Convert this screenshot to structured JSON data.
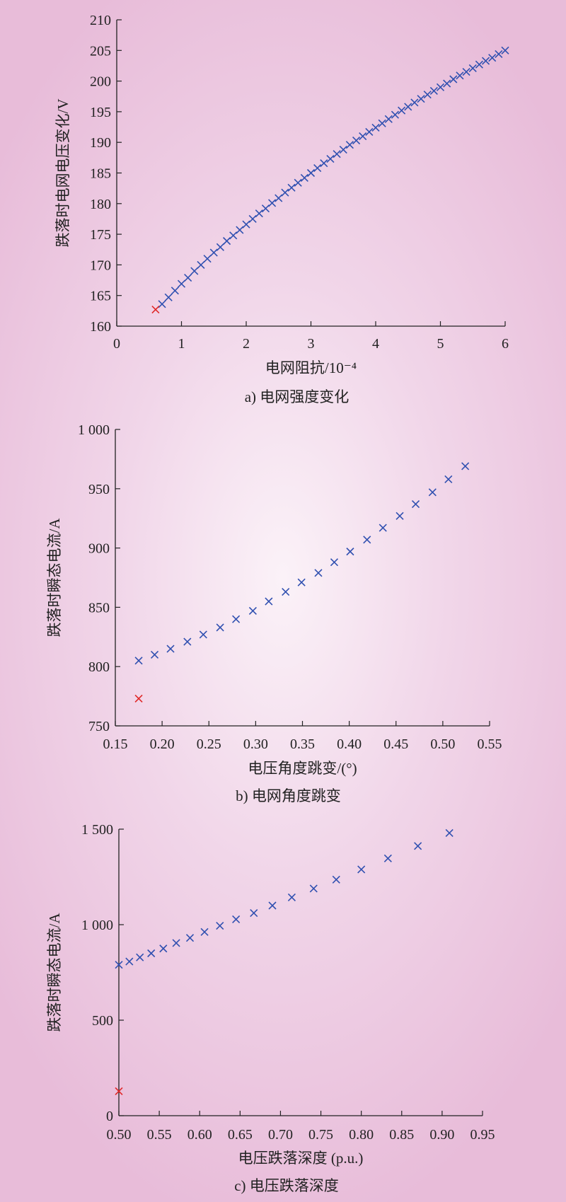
{
  "colors": {
    "series": "#3050b0",
    "highlight": "#e02828",
    "axis": "#222222"
  },
  "chart_data": [
    {
      "type": "scatter",
      "caption": "a) 电网强度变化",
      "xlabel": "电网阻抗/10⁻⁴",
      "ylabel": "跌落时电网电压变化/V",
      "xlim": [
        0,
        6
      ],
      "ylim": [
        160,
        210
      ],
      "xticks": [
        0,
        1,
        2,
        3,
        4,
        5,
        6
      ],
      "yticks": [
        160,
        165,
        170,
        175,
        180,
        185,
        190,
        195,
        200,
        205,
        210
      ],
      "xtick_labels": [
        "0",
        "1",
        "2",
        "3",
        "4",
        "5",
        "6"
      ],
      "ytick_labels": [
        "160",
        "165",
        "170",
        "175",
        "180",
        "185",
        "190",
        "195",
        "200",
        "205",
        "210"
      ],
      "series": [
        {
          "marker": "x",
          "color": "#3050b0",
          "x": [
            0.7,
            0.8,
            0.9,
            1.0,
            1.1,
            1.2,
            1.3,
            1.4,
            1.5,
            1.6,
            1.7,
            1.8,
            1.9,
            2.0,
            2.1,
            2.2,
            2.3,
            2.4,
            2.5,
            2.6,
            2.7,
            2.8,
            2.9,
            3.0,
            3.1,
            3.2,
            3.3,
            3.4,
            3.5,
            3.6,
            3.7,
            3.8,
            3.9,
            4.0,
            4.1,
            4.2,
            4.3,
            4.4,
            4.5,
            4.6,
            4.7,
            4.8,
            4.9,
            5.0,
            5.1,
            5.2,
            5.3,
            5.4,
            5.5,
            5.6,
            5.7,
            5.8,
            5.9,
            6.0
          ],
          "y": [
            163.6,
            164.7,
            165.8,
            166.9,
            167.9,
            169.0,
            170.0,
            171.0,
            172.0,
            172.9,
            173.9,
            174.8,
            175.7,
            176.6,
            177.5,
            178.4,
            179.2,
            180.1,
            180.9,
            181.8,
            182.6,
            183.4,
            184.2,
            185.0,
            185.8,
            186.6,
            187.3,
            188.1,
            188.8,
            189.6,
            190.3,
            191.0,
            191.7,
            192.4,
            193.1,
            193.8,
            194.5,
            195.2,
            195.8,
            196.5,
            197.1,
            197.8,
            198.4,
            199.0,
            199.6,
            200.3,
            200.9,
            201.5,
            202.1,
            202.7,
            203.3,
            203.8,
            204.4,
            205.0
          ]
        },
        {
          "marker": "x",
          "color": "#e02828",
          "x": [
            0.6
          ],
          "y": [
            162.7
          ]
        }
      ]
    },
    {
      "type": "scatter",
      "caption": "b) 电网角度跳变",
      "xlabel": "电压角度跳变/(°)",
      "ylabel": "跌落时瞬态电流/A",
      "xlim": [
        0.15,
        0.55
      ],
      "ylim": [
        750,
        1000
      ],
      "xticks": [
        0.15,
        0.2,
        0.25,
        0.3,
        0.35,
        0.4,
        0.45,
        0.5,
        0.55
      ],
      "yticks": [
        750,
        800,
        850,
        900,
        950,
        1000
      ],
      "xtick_labels": [
        "0.15",
        "0.20",
        "0.25",
        "0.30",
        "0.35",
        "0.40",
        "0.45",
        "0.50",
        "0.55"
      ],
      "ytick_labels": [
        "750",
        "800",
        "850",
        "900",
        "950",
        "1 000"
      ],
      "series": [
        {
          "marker": "x",
          "color": "#3050b0",
          "x": [
            0.175,
            0.192,
            0.209,
            0.227,
            0.244,
            0.262,
            0.279,
            0.297,
            0.314,
            0.332,
            0.349,
            0.367,
            0.384,
            0.401,
            0.419,
            0.436,
            0.454,
            0.471,
            0.489,
            0.506,
            0.524
          ],
          "y": [
            805,
            810,
            815,
            821,
            827,
            833,
            840,
            847,
            855,
            863,
            871,
            879,
            888,
            897,
            907,
            917,
            927,
            937,
            947,
            958,
            969
          ]
        },
        {
          "marker": "x",
          "color": "#e02828",
          "x": [
            0.175
          ],
          "y": [
            773
          ]
        }
      ]
    },
    {
      "type": "scatter",
      "caption": "c) 电压跌落深度",
      "xlabel": "电压跌落深度 (p.u.)",
      "ylabel": "跌落时瞬态电流/A",
      "xlim": [
        0.5,
        0.95
      ],
      "ylim": [
        0,
        1500
      ],
      "xticks": [
        0.5,
        0.55,
        0.6,
        0.65,
        0.7,
        0.75,
        0.8,
        0.85,
        0.9,
        0.95
      ],
      "yticks": [
        0,
        500,
        1000,
        1500
      ],
      "xtick_labels": [
        "0.50",
        "0.55",
        "0.60",
        "0.65",
        "0.70",
        "0.75",
        "0.80",
        "0.85",
        "0.90",
        "0.95"
      ],
      "ytick_labels": [
        "0",
        "500",
        "1 000",
        "1 500"
      ],
      "series": [
        {
          "marker": "x",
          "color": "#3050b0",
          "x": [
            0.5,
            0.513,
            0.526,
            0.54,
            0.555,
            0.571,
            0.588,
            0.606,
            0.625,
            0.645,
            0.667,
            0.69,
            0.714,
            0.741,
            0.769,
            0.8,
            0.833,
            0.87,
            0.909
          ],
          "y": [
            790,
            807,
            829,
            850,
            875,
            904,
            931,
            962,
            994,
            1028,
            1061,
            1100,
            1143,
            1189,
            1236,
            1289,
            1347,
            1412,
            1480
          ]
        },
        {
          "marker": "x",
          "color": "#e02828",
          "x": [
            0.5
          ],
          "y": [
            128
          ]
        }
      ]
    }
  ]
}
